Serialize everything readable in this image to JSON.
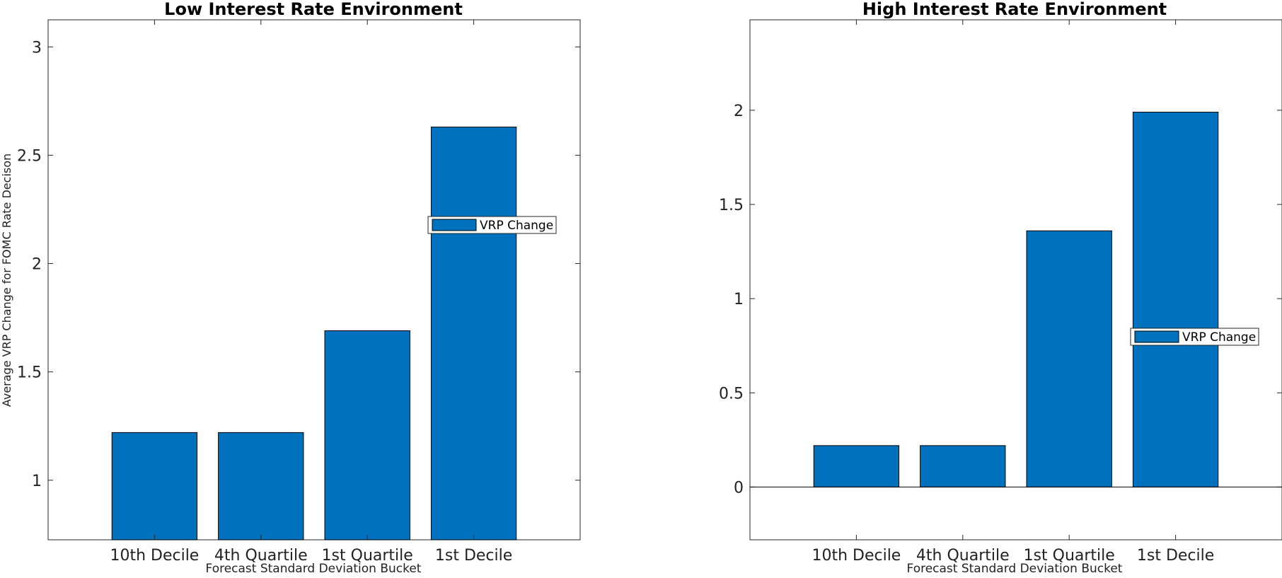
{
  "chart_data": [
    {
      "type": "bar",
      "title": "Low Interest Rate Environment",
      "xlabel": "Forecast Standard Deviation Bucket",
      "ylabel": "Average VRP Change for FOMC Rate Decison",
      "categories": [
        "10th Decile",
        "4th Quartile",
        "1st Quartile",
        "1st Decile"
      ],
      "series": [
        {
          "name": "VRP Change",
          "values": [
            1.22,
            1.22,
            1.69,
            2.63
          ],
          "color": "#0072bd"
        }
      ],
      "ylim": [
        0.725,
        3.125
      ],
      "yticks": [
        1,
        1.5,
        2,
        2.5,
        3
      ],
      "ytick_labels": [
        "1",
        "1.5",
        "2",
        "2.5",
        "3"
      ],
      "baseline": null,
      "legend": "right"
    },
    {
      "type": "bar",
      "title": "High Interest Rate Environment",
      "xlabel": "Forecast Standard Deviation Bucket",
      "ylabel": "",
      "categories": [
        "10th Decile",
        "4th Quartile",
        "1st Quartile",
        "1st Decile"
      ],
      "series": [
        {
          "name": "VRP Change",
          "values": [
            0.22,
            0.22,
            1.36,
            1.99
          ],
          "color": "#0072bd"
        }
      ],
      "ylim": [
        -0.28,
        2.48
      ],
      "yticks": [
        0,
        0.5,
        1,
        1.5,
        2
      ],
      "ytick_labels": [
        "0",
        "0.5",
        "1",
        "1.5",
        "2"
      ],
      "baseline": 0,
      "legend": "right"
    }
  ]
}
